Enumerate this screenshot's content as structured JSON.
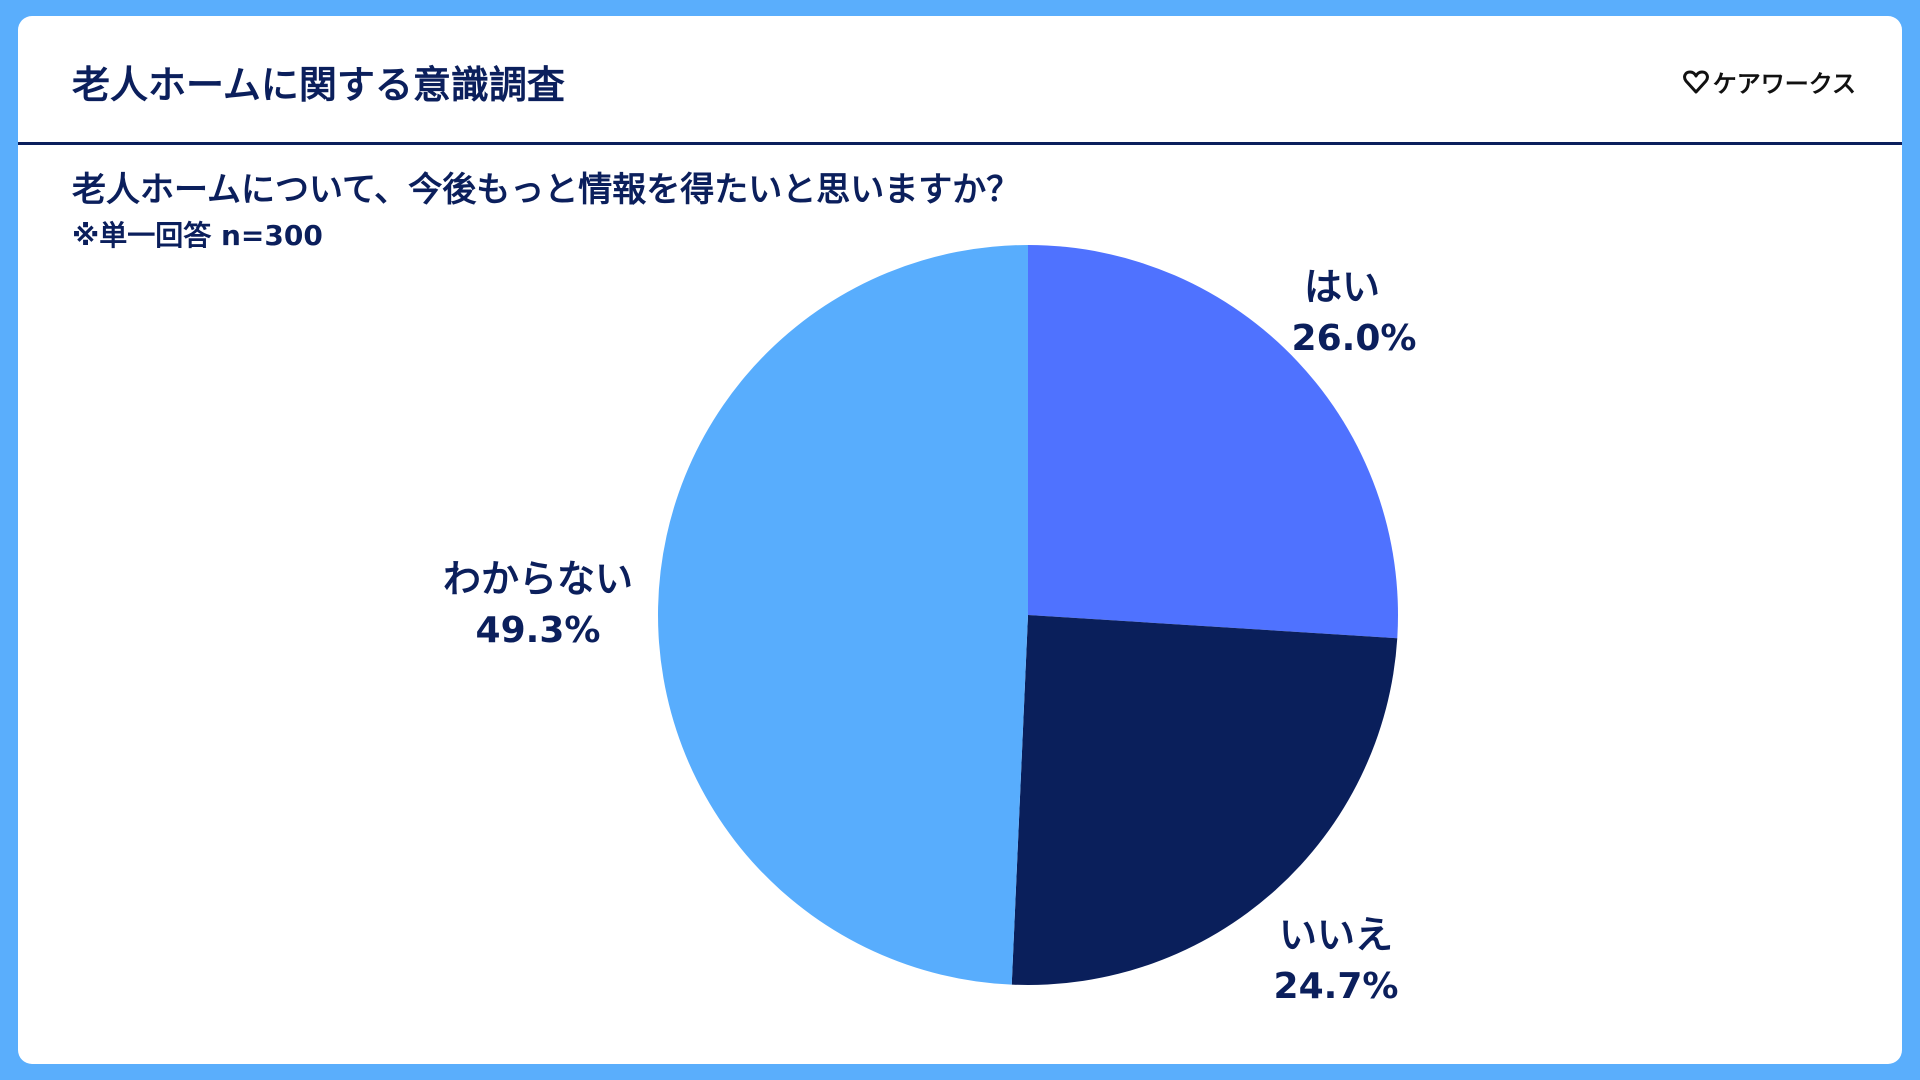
{
  "header": {
    "title": "老人ホームに関する意識調査",
    "brand": "ケアワークス"
  },
  "question": "老人ホームについて、今後もっと情報を得たいと思いますか？",
  "note": "※単一回答 n=300",
  "colors": {
    "background": "#5aaefc",
    "text": "#0b1f5c",
    "yes": "#4f72ff",
    "no": "#0a1f5b",
    "unknown": "#58adfd"
  },
  "chart_data": {
    "type": "pie",
    "title": "老人ホームについて、今後もっと情報を得たいと思いますか？",
    "slices": [
      {
        "label": "はい",
        "value": 26.0,
        "display": "26.0%",
        "color": "#4f72ff"
      },
      {
        "label": "いいえ",
        "value": 24.7,
        "display": "24.7%",
        "color": "#0a1f5b"
      },
      {
        "label": "わからない",
        "value": 49.3,
        "display": "49.3%",
        "color": "#58adfd"
      }
    ],
    "start": "12 o'clock",
    "direction": "clockwise"
  }
}
